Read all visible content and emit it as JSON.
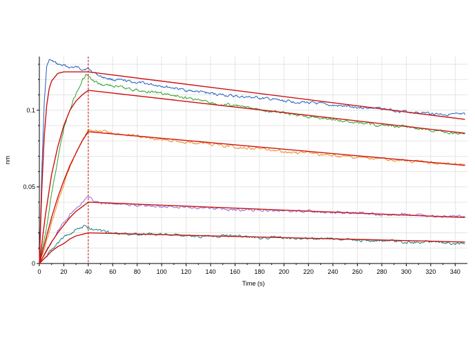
{
  "chart_data": {
    "type": "line",
    "title": "",
    "xlabel": "Time (s)",
    "ylabel": "nm",
    "xlim": [
      0,
      350
    ],
    "ylim": [
      0,
      0.135
    ],
    "x_ticks": [
      0,
      20,
      40,
      60,
      80,
      100,
      120,
      140,
      160,
      180,
      200,
      220,
      240,
      260,
      280,
      300,
      320,
      340
    ],
    "y_ticks": [
      0,
      0.05,
      0.1
    ],
    "y_tick_labels": [
      "0",
      "0.05",
      "0.1"
    ],
    "grid": true,
    "dissociation_marker_x": 40,
    "legend": "none",
    "series": [
      {
        "color": "#1f5fbf",
        "kind": "measured",
        "x": [
          0,
          2,
          4,
          6,
          8,
          10,
          15,
          20,
          25,
          30,
          35,
          40,
          50,
          60,
          80,
          100,
          120,
          140,
          160,
          180,
          200,
          220,
          240,
          260,
          280,
          300,
          320,
          340,
          348
        ],
        "y": [
          0,
          0.06,
          0.105,
          0.128,
          0.133,
          0.132,
          0.13,
          0.129,
          0.128,
          0.128,
          0.127,
          0.127,
          0.122,
          0.12,
          0.118,
          0.116,
          0.113,
          0.111,
          0.109,
          0.108,
          0.106,
          0.105,
          0.103,
          0.102,
          0.101,
          0.099,
          0.098,
          0.097,
          0.097
        ]
      },
      {
        "color": "#2ca02c",
        "kind": "measured",
        "x": [
          0,
          5,
          10,
          15,
          20,
          25,
          30,
          35,
          38,
          40,
          45,
          50,
          60,
          80,
          100,
          120,
          140,
          160,
          180,
          200,
          220,
          240,
          260,
          280,
          300,
          320,
          340,
          348
        ],
        "y": [
          0,
          0.02,
          0.045,
          0.068,
          0.088,
          0.101,
          0.111,
          0.119,
          0.123,
          0.122,
          0.118,
          0.117,
          0.116,
          0.113,
          0.111,
          0.108,
          0.105,
          0.103,
          0.1,
          0.098,
          0.096,
          0.094,
          0.092,
          0.09,
          0.089,
          0.087,
          0.085,
          0.085
        ]
      },
      {
        "color": "#f08a1c",
        "kind": "measured",
        "x": [
          0,
          5,
          10,
          15,
          20,
          25,
          30,
          35,
          38,
          40,
          50,
          60,
          80,
          100,
          120,
          140,
          160,
          180,
          200,
          220,
          240,
          260,
          280,
          300,
          320,
          340,
          348
        ],
        "y": [
          0,
          0.012,
          0.026,
          0.04,
          0.052,
          0.063,
          0.072,
          0.08,
          0.084,
          0.087,
          0.086,
          0.085,
          0.083,
          0.081,
          0.079,
          0.078,
          0.076,
          0.075,
          0.073,
          0.072,
          0.07,
          0.069,
          0.068,
          0.067,
          0.066,
          0.065,
          0.065
        ]
      },
      {
        "color": "#9467d8",
        "kind": "measured",
        "x": [
          0,
          5,
          10,
          15,
          20,
          25,
          30,
          35,
          38,
          40,
          50,
          60,
          80,
          100,
          120,
          140,
          160,
          180,
          200,
          220,
          240,
          260,
          280,
          300,
          320,
          340,
          348
        ],
        "y": [
          0,
          0.007,
          0.014,
          0.021,
          0.027,
          0.032,
          0.036,
          0.04,
          0.043,
          0.043,
          0.039,
          0.039,
          0.038,
          0.037,
          0.037,
          0.036,
          0.035,
          0.035,
          0.034,
          0.034,
          0.033,
          0.033,
          0.032,
          0.032,
          0.031,
          0.031,
          0.031
        ]
      },
      {
        "color": "#1b7d7d",
        "kind": "measured",
        "x": [
          0,
          5,
          10,
          15,
          20,
          25,
          30,
          35,
          38,
          40,
          50,
          60,
          80,
          100,
          120,
          140,
          160,
          180,
          200,
          220,
          240,
          260,
          280,
          300,
          320,
          340,
          348
        ],
        "y": [
          0,
          0.004,
          0.009,
          0.013,
          0.017,
          0.02,
          0.022,
          0.024,
          0.025,
          0.023,
          0.021,
          0.02,
          0.019,
          0.019,
          0.018,
          0.018,
          0.018,
          0.017,
          0.017,
          0.016,
          0.016,
          0.015,
          0.015,
          0.014,
          0.014,
          0.013,
          0.013
        ]
      },
      {
        "color": "#cc1111",
        "kind": "fit",
        "x": [
          0,
          2,
          4,
          6,
          8,
          10,
          15,
          20,
          30,
          40,
          348
        ],
        "y": [
          0,
          0.048,
          0.083,
          0.103,
          0.114,
          0.119,
          0.124,
          0.125,
          0.125,
          0.125,
          0.094
        ]
      },
      {
        "color": "#cc1111",
        "kind": "fit",
        "x": [
          0,
          5,
          10,
          15,
          20,
          25,
          30,
          35,
          40,
          348
        ],
        "y": [
          0,
          0.032,
          0.058,
          0.076,
          0.09,
          0.1,
          0.106,
          0.11,
          0.113,
          0.085
        ]
      },
      {
        "color": "#cc1111",
        "kind": "fit",
        "x": [
          0,
          5,
          10,
          15,
          20,
          25,
          30,
          35,
          40,
          348
        ],
        "y": [
          0,
          0.015,
          0.03,
          0.043,
          0.054,
          0.064,
          0.072,
          0.08,
          0.086,
          0.064
        ]
      },
      {
        "color": "#cc1111",
        "kind": "fit",
        "x": [
          0,
          5,
          10,
          15,
          20,
          25,
          30,
          35,
          40,
          348
        ],
        "y": [
          0,
          0.007,
          0.014,
          0.02,
          0.025,
          0.03,
          0.034,
          0.037,
          0.04,
          0.03
        ]
      },
      {
        "color": "#cc1111",
        "kind": "fit",
        "x": [
          0,
          5,
          10,
          15,
          20,
          25,
          30,
          35,
          40,
          348
        ],
        "y": [
          0,
          0.004,
          0.008,
          0.011,
          0.013,
          0.016,
          0.018,
          0.019,
          0.02,
          0.014
        ]
      }
    ]
  }
}
